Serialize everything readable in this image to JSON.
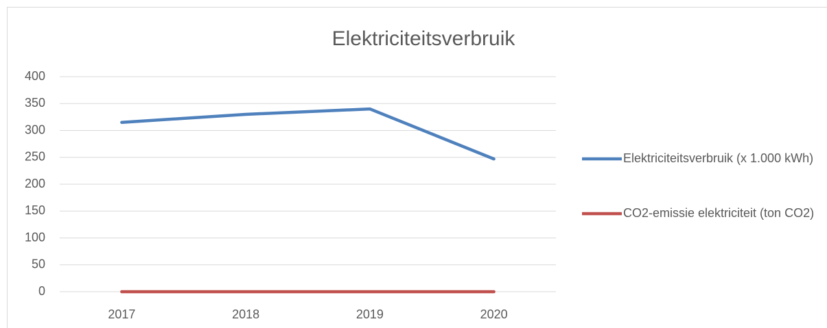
{
  "chart_data": {
    "type": "line",
    "title": "Elektriciteitsverbruik",
    "categories": [
      "2017",
      "2018",
      "2019",
      "2020"
    ],
    "series": [
      {
        "name": "Elektriciteitsverbruik (x 1.000 kWh)",
        "color": "#4f81bd",
        "values": [
          315,
          330,
          340,
          247
        ]
      },
      {
        "name": "CO2-emissie elektriciteit (ton CO2)",
        "color": "#c0504d",
        "values": [
          0,
          0,
          0,
          0
        ]
      }
    ],
    "ylim": [
      0,
      400
    ],
    "yticks": [
      0,
      50,
      100,
      150,
      200,
      250,
      300,
      350,
      400
    ],
    "grid": true,
    "legend": "right"
  }
}
